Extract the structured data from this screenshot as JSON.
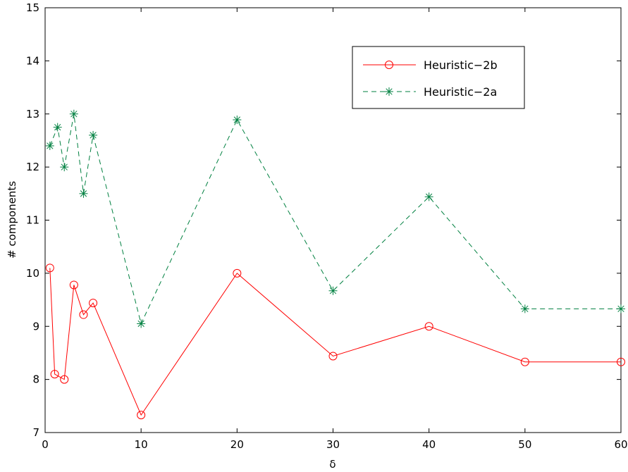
{
  "chart_data": {
    "type": "line",
    "title": "",
    "xlabel": "δ",
    "ylabel": "# components",
    "xlim": [
      0,
      60
    ],
    "ylim": [
      7,
      15
    ],
    "xticks": [
      0,
      10,
      20,
      30,
      40,
      50,
      60
    ],
    "yticks": [
      7,
      8,
      9,
      10,
      11,
      12,
      13,
      14,
      15
    ],
    "grid": false,
    "legend_position": "top-right",
    "series": [
      {
        "name": "Heuristic−2b",
        "color": "#ff0000",
        "line_style": "solid",
        "marker": "circle",
        "x": [
          0.5,
          1,
          2,
          3,
          4,
          5,
          10,
          20,
          30,
          40,
          50,
          60
        ],
        "y": [
          10.1,
          8.1,
          8.0,
          9.78,
          9.22,
          9.44,
          7.33,
          10.0,
          8.44,
          9.0,
          8.33,
          8.33
        ]
      },
      {
        "name": "Heuristic−2a",
        "color": "#008040",
        "line_style": "dashed",
        "marker": "asterisk",
        "x": [
          0.5,
          1.3,
          2,
          3,
          4,
          5,
          10,
          20,
          30,
          40,
          50,
          60
        ],
        "y": [
          12.4,
          12.75,
          12.0,
          13.0,
          11.5,
          12.6,
          9.05,
          12.89,
          9.67,
          11.44,
          9.33,
          9.33
        ]
      }
    ]
  }
}
